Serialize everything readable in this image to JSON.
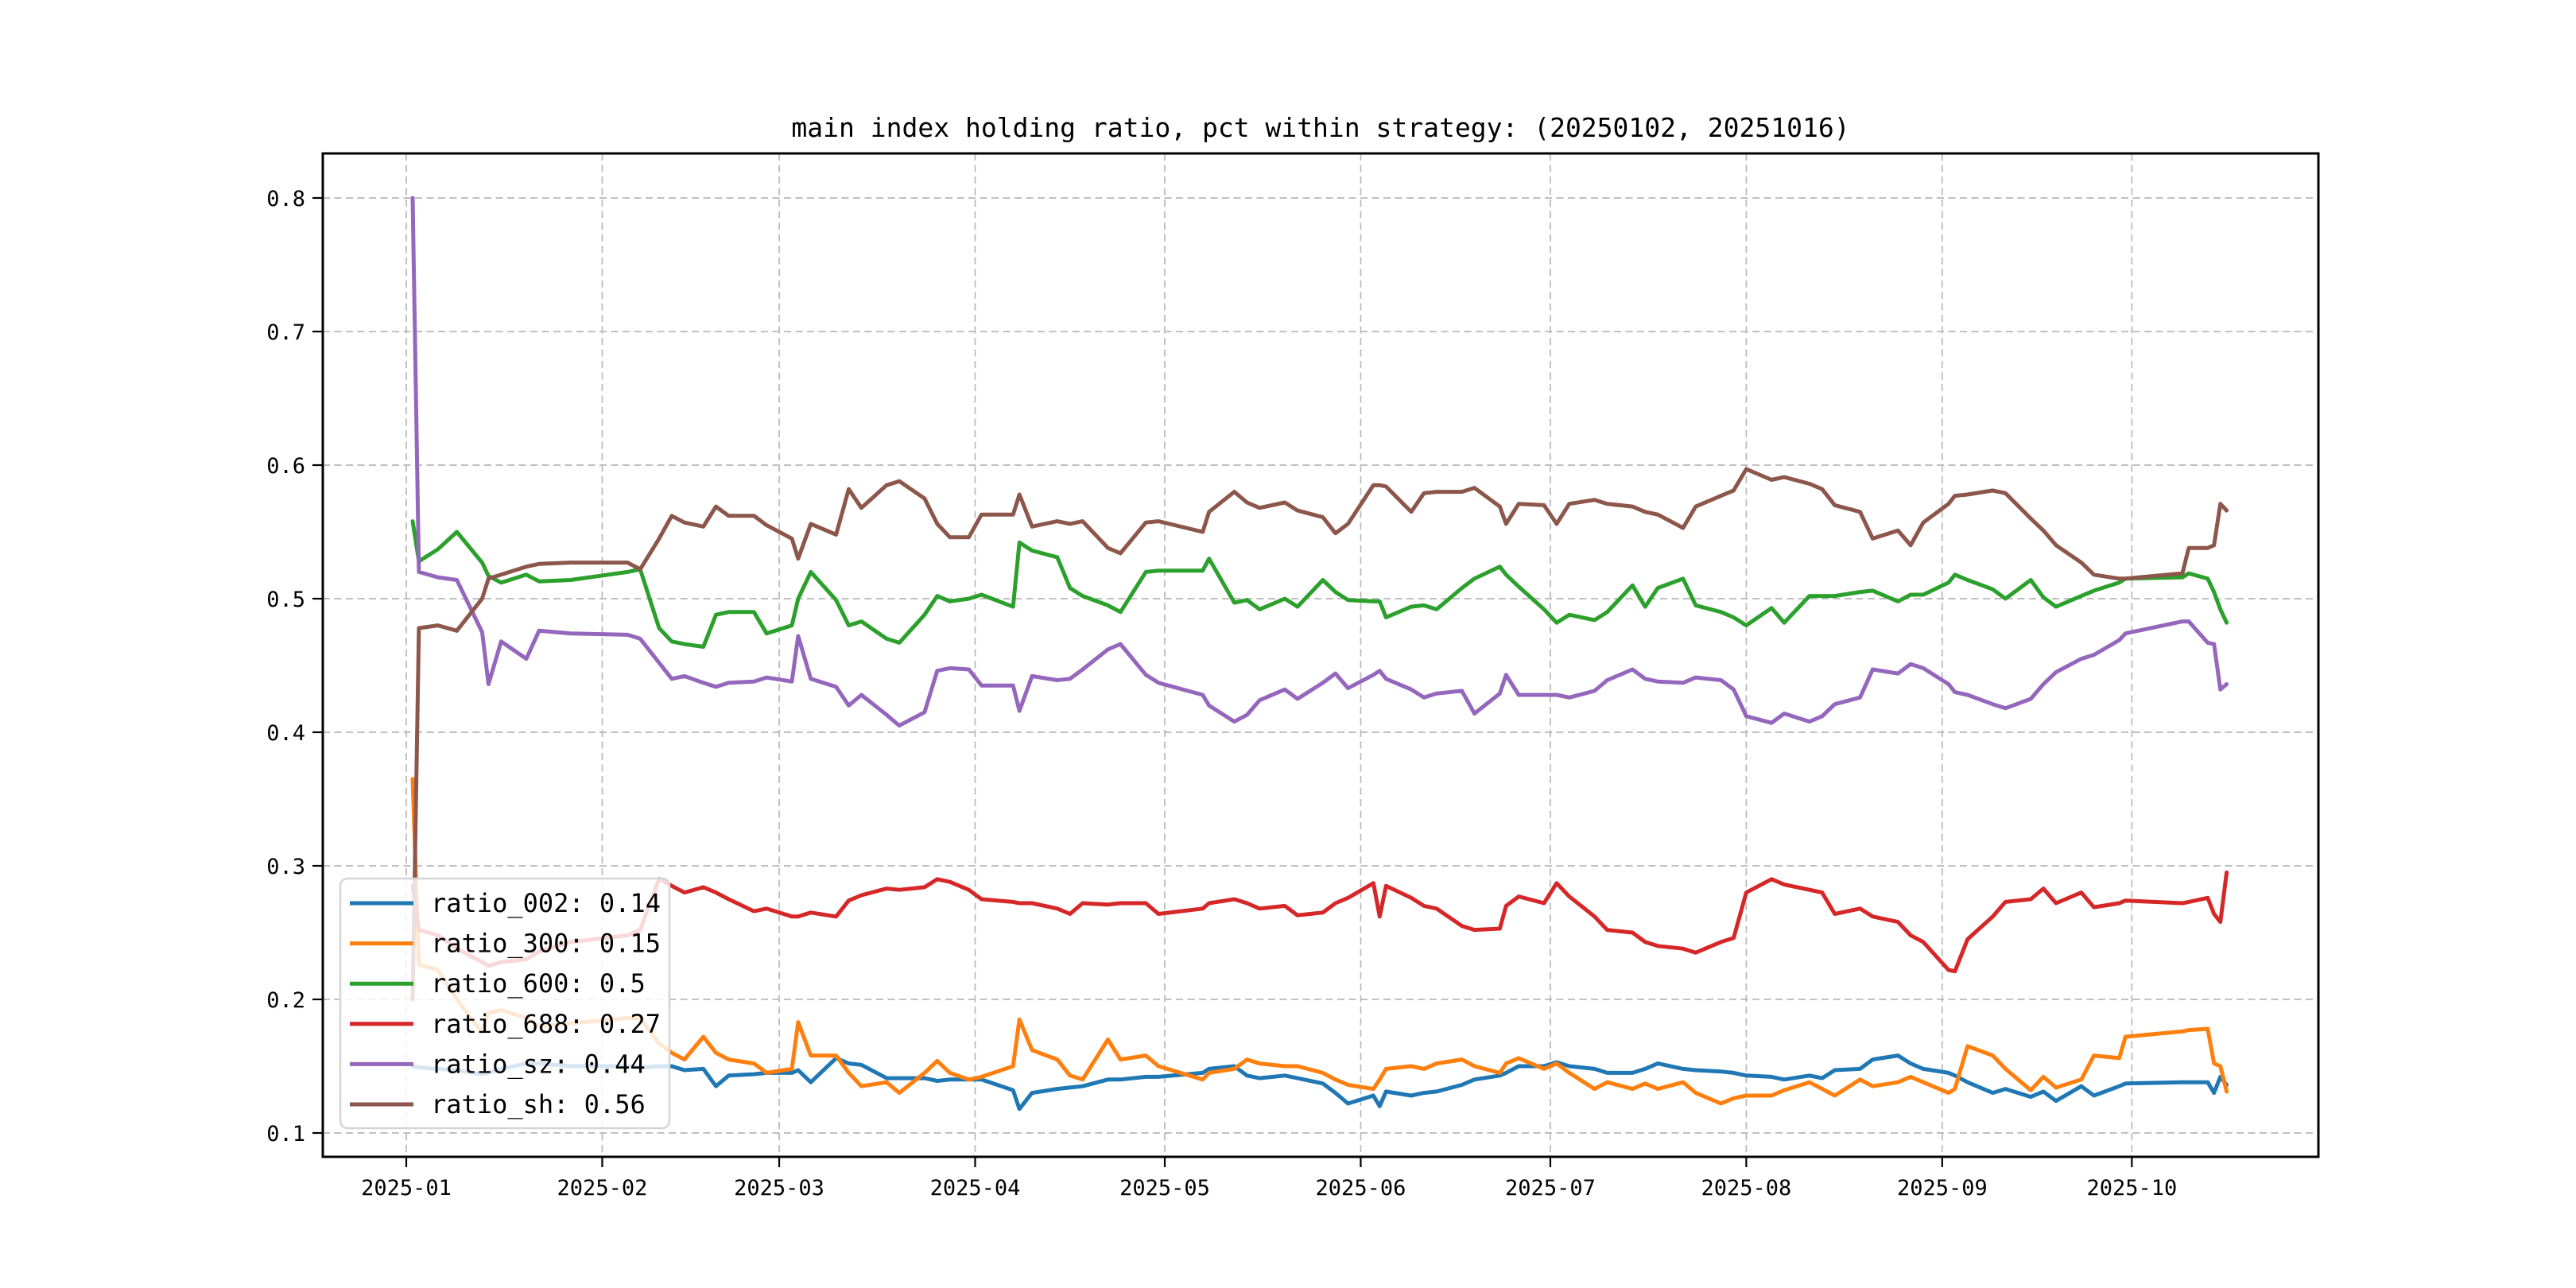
{
  "chart_data": {
    "type": "line",
    "title": "main index holding ratio, pct within strategy: (20250102, 20251016)",
    "xlabel": "",
    "ylabel": "",
    "grid": true,
    "grid_style": "dashed",
    "legend_position": "lower left",
    "background_color": "#ffffff",
    "spine_color": "#000000",
    "grid_color": "#b8b8b8",
    "legend_border_color": "#d5d5d5",
    "ylim": [
      0.082,
      0.833
    ],
    "y_ticks": [
      0.1,
      0.2,
      0.3,
      0.4,
      0.5,
      0.6,
      0.7,
      0.8
    ],
    "x_tick_labels": [
      "2025-01",
      "2025-02",
      "2025-03",
      "2025-04",
      "2025-05",
      "2025-06",
      "2025-07",
      "2025-08",
      "2025-09",
      "2025-10"
    ],
    "x_range": [
      "2024-12-19",
      "2025-10-30"
    ],
    "dates": [
      "01-02",
      "01-03",
      "01-06",
      "01-09",
      "01-13",
      "01-14",
      "01-16",
      "01-20",
      "01-22",
      "01-27",
      "02-05",
      "02-07",
      "02-10",
      "02-12",
      "02-14",
      "02-17",
      "02-19",
      "02-21",
      "02-25",
      "02-27",
      "03-03",
      "03-04",
      "03-06",
      "03-10",
      "03-12",
      "03-14",
      "03-18",
      "03-20",
      "03-24",
      "03-26",
      "03-28",
      "03-31",
      "04-02",
      "04-07",
      "04-08",
      "04-10",
      "04-14",
      "04-16",
      "04-18",
      "04-22",
      "04-24",
      "04-28",
      "04-30",
      "05-07",
      "05-08",
      "05-12",
      "05-14",
      "05-16",
      "05-20",
      "05-22",
      "05-26",
      "05-28",
      "05-30",
      "06-03",
      "06-04",
      "06-05",
      "06-09",
      "06-11",
      "06-13",
      "06-17",
      "06-19",
      "06-23",
      "06-24",
      "06-26",
      "06-30",
      "07-02",
      "07-04",
      "07-08",
      "07-10",
      "07-14",
      "07-16",
      "07-18",
      "07-22",
      "07-24",
      "07-28",
      "07-30",
      "08-01",
      "08-05",
      "08-07",
      "08-11",
      "08-13",
      "08-15",
      "08-19",
      "08-21",
      "08-25",
      "08-27",
      "08-29",
      "09-02",
      "09-03",
      "09-05",
      "09-09",
      "09-11",
      "09-15",
      "09-17",
      "09-19",
      "09-23",
      "09-25",
      "09-29",
      "09-30",
      "10-09",
      "10-10",
      "10-13",
      "10-14",
      "10-15",
      "10-16"
    ],
    "series": [
      {
        "name": "ratio_002",
        "legend_label": "ratio_002: 0.14",
        "color": "#1f77b4",
        "values": [
          0.15,
          0.149,
          0.148,
          0.147,
          0.144,
          0.145,
          0.148,
          0.152,
          0.152,
          0.15,
          0.15,
          0.149,
          0.15,
          0.15,
          0.147,
          0.148,
          0.135,
          0.143,
          0.144,
          0.145,
          0.145,
          0.147,
          0.138,
          0.156,
          0.152,
          0.151,
          0.141,
          0.141,
          0.141,
          0.139,
          0.14,
          0.14,
          0.14,
          0.132,
          0.118,
          0.13,
          0.133,
          0.134,
          0.135,
          0.14,
          0.14,
          0.142,
          0.142,
          0.145,
          0.148,
          0.15,
          0.143,
          0.141,
          0.143,
          0.141,
          0.137,
          0.13,
          0.122,
          0.128,
          0.12,
          0.131,
          0.128,
          0.13,
          0.131,
          0.136,
          0.14,
          0.143,
          0.145,
          0.15,
          0.15,
          0.153,
          0.15,
          0.148,
          0.145,
          0.145,
          0.148,
          0.152,
          0.148,
          0.147,
          0.146,
          0.145,
          0.143,
          0.142,
          0.14,
          0.143,
          0.141,
          0.147,
          0.148,
          0.155,
          0.158,
          0.152,
          0.148,
          0.145,
          0.143,
          0.138,
          0.13,
          0.133,
          0.127,
          0.131,
          0.124,
          0.135,
          0.128,
          0.135,
          0.137,
          0.138,
          0.138,
          0.138,
          0.13,
          0.142,
          0.136
        ]
      },
      {
        "name": "ratio_300",
        "legend_label": "ratio_300: 0.15",
        "color": "#ff7f0e",
        "values": [
          0.365,
          0.226,
          0.222,
          0.2,
          0.175,
          0.19,
          0.192,
          0.186,
          0.18,
          0.182,
          0.186,
          0.186,
          0.167,
          0.16,
          0.155,
          0.172,
          0.16,
          0.155,
          0.152,
          0.145,
          0.148,
          0.183,
          0.158,
          0.158,
          0.145,
          0.135,
          0.138,
          0.13,
          0.145,
          0.154,
          0.145,
          0.14,
          0.142,
          0.15,
          0.185,
          0.162,
          0.155,
          0.143,
          0.14,
          0.17,
          0.155,
          0.158,
          0.15,
          0.14,
          0.145,
          0.148,
          0.155,
          0.152,
          0.15,
          0.15,
          0.145,
          0.14,
          0.136,
          0.133,
          0.14,
          0.148,
          0.15,
          0.148,
          0.152,
          0.155,
          0.15,
          0.145,
          0.152,
          0.156,
          0.148,
          0.152,
          0.145,
          0.133,
          0.138,
          0.133,
          0.137,
          0.133,
          0.138,
          0.13,
          0.122,
          0.126,
          0.128,
          0.128,
          0.132,
          0.138,
          0.133,
          0.128,
          0.14,
          0.135,
          0.138,
          0.142,
          0.138,
          0.13,
          0.133,
          0.165,
          0.158,
          0.148,
          0.132,
          0.142,
          0.134,
          0.14,
          0.158,
          0.156,
          0.172,
          0.176,
          0.177,
          0.178,
          0.152,
          0.15,
          0.131
        ]
      },
      {
        "name": "ratio_600",
        "legend_label": "ratio_600: 0.5",
        "color": "#2ca02c",
        "values": [
          0.558,
          0.528,
          0.537,
          0.55,
          0.527,
          0.517,
          0.512,
          0.518,
          0.513,
          0.514,
          0.52,
          0.522,
          0.478,
          0.468,
          0.466,
          0.464,
          0.488,
          0.49,
          0.49,
          0.474,
          0.48,
          0.5,
          0.52,
          0.499,
          0.48,
          0.483,
          0.47,
          0.467,
          0.488,
          0.502,
          0.498,
          0.5,
          0.503,
          0.494,
          0.542,
          0.536,
          0.531,
          0.508,
          0.502,
          0.495,
          0.49,
          0.52,
          0.521,
          0.521,
          0.53,
          0.497,
          0.499,
          0.492,
          0.5,
          0.494,
          0.514,
          0.505,
          0.499,
          0.498,
          0.498,
          0.486,
          0.494,
          0.495,
          0.492,
          0.508,
          0.515,
          0.524,
          0.518,
          0.509,
          0.492,
          0.482,
          0.488,
          0.484,
          0.49,
          0.51,
          0.494,
          0.508,
          0.515,
          0.495,
          0.49,
          0.486,
          0.48,
          0.493,
          0.482,
          0.502,
          0.502,
          0.502,
          0.505,
          0.506,
          0.498,
          0.503,
          0.503,
          0.512,
          0.518,
          0.514,
          0.507,
          0.5,
          0.514,
          0.501,
          0.494,
          0.502,
          0.506,
          0.512,
          0.515,
          0.516,
          0.519,
          0.515,
          0.505,
          0.492,
          0.482
        ]
      },
      {
        "name": "ratio_688",
        "legend_label": "ratio_688: 0.27",
        "color": "#d62728",
        "values": [
          0.285,
          0.252,
          0.248,
          0.238,
          0.228,
          0.225,
          0.228,
          0.23,
          0.236,
          0.243,
          0.248,
          0.252,
          0.29,
          0.285,
          0.28,
          0.284,
          0.28,
          0.275,
          0.266,
          0.268,
          0.262,
          0.262,
          0.265,
          0.262,
          0.274,
          0.278,
          0.283,
          0.282,
          0.284,
          0.29,
          0.288,
          0.282,
          0.275,
          0.273,
          0.272,
          0.272,
          0.268,
          0.264,
          0.272,
          0.271,
          0.272,
          0.272,
          0.264,
          0.268,
          0.272,
          0.275,
          0.272,
          0.268,
          0.27,
          0.263,
          0.265,
          0.272,
          0.276,
          0.287,
          0.262,
          0.285,
          0.276,
          0.27,
          0.268,
          0.255,
          0.252,
          0.253,
          0.27,
          0.277,
          0.272,
          0.287,
          0.277,
          0.262,
          0.252,
          0.25,
          0.243,
          0.24,
          0.238,
          0.235,
          0.243,
          0.246,
          0.28,
          0.29,
          0.286,
          0.282,
          0.28,
          0.264,
          0.268,
          0.262,
          0.258,
          0.248,
          0.243,
          0.222,
          0.221,
          0.245,
          0.262,
          0.273,
          0.275,
          0.283,
          0.272,
          0.28,
          0.269,
          0.272,
          0.274,
          0.272,
          0.273,
          0.276,
          0.264,
          0.258,
          0.295
        ]
      },
      {
        "name": "ratio_sz",
        "legend_label": "ratio_sz: 0.44",
        "color": "#9467bd",
        "values": [
          0.8,
          0.52,
          0.516,
          0.514,
          0.475,
          0.436,
          0.468,
          0.455,
          0.476,
          0.474,
          0.473,
          0.47,
          0.452,
          0.44,
          0.442,
          0.437,
          0.434,
          0.437,
          0.438,
          0.441,
          0.438,
          0.472,
          0.44,
          0.434,
          0.42,
          0.428,
          0.413,
          0.405,
          0.415,
          0.446,
          0.448,
          0.447,
          0.435,
          0.435,
          0.416,
          0.442,
          0.439,
          0.44,
          0.447,
          0.462,
          0.466,
          0.443,
          0.437,
          0.428,
          0.42,
          0.408,
          0.413,
          0.424,
          0.432,
          0.425,
          0.437,
          0.444,
          0.433,
          0.443,
          0.446,
          0.44,
          0.432,
          0.426,
          0.429,
          0.431,
          0.414,
          0.429,
          0.443,
          0.428,
          0.428,
          0.428,
          0.426,
          0.431,
          0.439,
          0.447,
          0.44,
          0.438,
          0.437,
          0.441,
          0.439,
          0.432,
          0.412,
          0.407,
          0.414,
          0.408,
          0.412,
          0.421,
          0.426,
          0.447,
          0.444,
          0.451,
          0.448,
          0.436,
          0.43,
          0.428,
          0.421,
          0.418,
          0.425,
          0.436,
          0.445,
          0.455,
          0.458,
          0.469,
          0.474,
          0.483,
          0.483,
          0.467,
          0.466,
          0.432,
          0.436
        ]
      },
      {
        "name": "ratio_sh",
        "legend_label": "ratio_sh: 0.56",
        "color": "#8c564b",
        "values": [
          0.2,
          0.478,
          0.48,
          0.476,
          0.5,
          0.515,
          0.518,
          0.524,
          0.526,
          0.527,
          0.527,
          0.522,
          0.545,
          0.562,
          0.557,
          0.554,
          0.569,
          0.562,
          0.562,
          0.555,
          0.545,
          0.53,
          0.556,
          0.548,
          0.582,
          0.568,
          0.585,
          0.588,
          0.575,
          0.556,
          0.546,
          0.546,
          0.563,
          0.563,
          0.578,
          0.554,
          0.558,
          0.556,
          0.558,
          0.538,
          0.534,
          0.557,
          0.558,
          0.55,
          0.565,
          0.58,
          0.572,
          0.568,
          0.572,
          0.566,
          0.561,
          0.549,
          0.556,
          0.585,
          0.585,
          0.584,
          0.565,
          0.579,
          0.58,
          0.58,
          0.583,
          0.569,
          0.556,
          0.571,
          0.57,
          0.556,
          0.571,
          0.574,
          0.571,
          0.569,
          0.565,
          0.563,
          0.553,
          0.569,
          0.577,
          0.581,
          0.597,
          0.589,
          0.591,
          0.586,
          0.582,
          0.57,
          0.565,
          0.545,
          0.551,
          0.54,
          0.557,
          0.571,
          0.577,
          0.578,
          0.581,
          0.579,
          0.56,
          0.551,
          0.54,
          0.527,
          0.518,
          0.515,
          0.515,
          0.519,
          0.538,
          0.538,
          0.54,
          0.571,
          0.566
        ]
      }
    ]
  }
}
